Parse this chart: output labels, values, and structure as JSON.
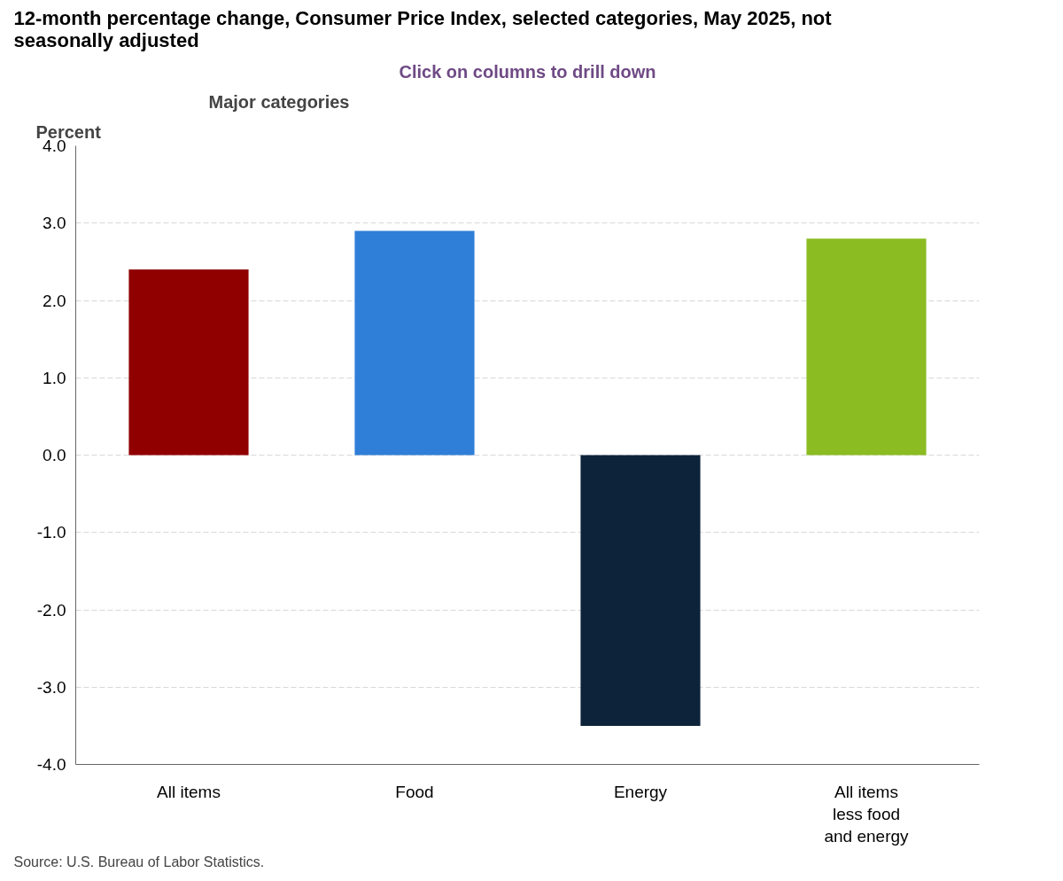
{
  "chart_data": {
    "type": "bar",
    "title": "12-month percentage change, Consumer Price Index, selected categories, May 2025, not seasonally adjusted",
    "subtitle": "Major categories",
    "ylabel": "Percent",
    "categories": [
      "All items",
      "Food",
      "Energy",
      "All items less food and energy"
    ],
    "values": [
      2.4,
      2.9,
      -3.5,
      2.8
    ],
    "colors": [
      "#910000",
      "#2f7ed8",
      "#0d233a",
      "#8bbc21"
    ],
    "ylim": [
      -4,
      4
    ],
    "yticks": [
      {
        "value": -4,
        "label": "-4.0"
      },
      {
        "value": -3,
        "label": "-3.0"
      },
      {
        "value": -2,
        "label": "-2.0"
      },
      {
        "value": -1,
        "label": "-1.0"
      },
      {
        "value": 0,
        "label": "0.0"
      },
      {
        "value": 1,
        "label": "1.0"
      },
      {
        "value": 2,
        "label": "2.0"
      },
      {
        "value": 3,
        "label": "3.0"
      },
      {
        "value": 4,
        "label": "4.0"
      }
    ],
    "grid": "y",
    "annotations": [
      "Click on columns to drill down",
      "Source: U.S. Bureau of Labor Statistics."
    ]
  }
}
